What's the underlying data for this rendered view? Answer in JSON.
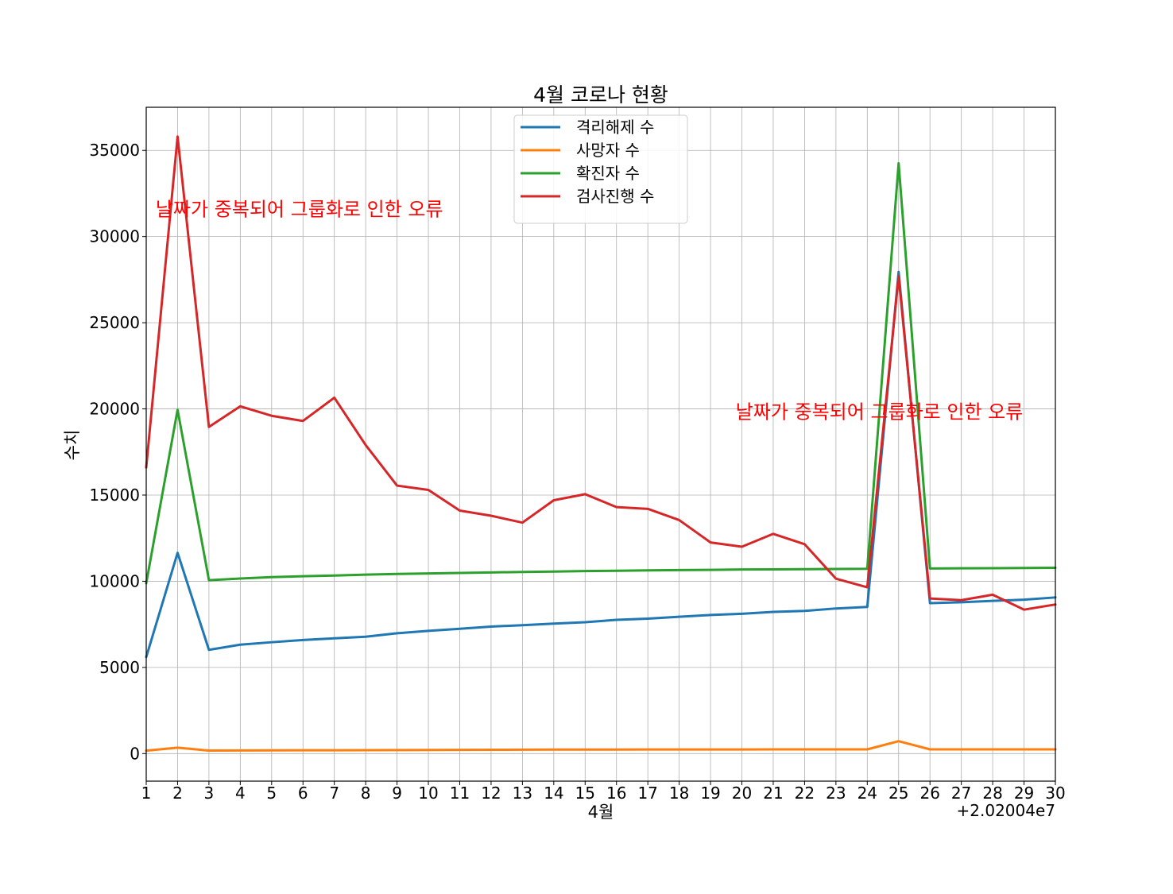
{
  "chart_data": {
    "type": "line",
    "title": "4월 코로나 현황",
    "xlabel": "4월",
    "ylabel": "수치",
    "x_offset_text": "+2.02004e7",
    "x": [
      1,
      2,
      3,
      4,
      5,
      6,
      7,
      8,
      9,
      10,
      11,
      12,
      13,
      14,
      15,
      16,
      17,
      18,
      19,
      20,
      21,
      22,
      23,
      24,
      25,
      26,
      27,
      28,
      29,
      30
    ],
    "xlim": [
      1,
      30
    ],
    "ylim": [
      -1600,
      37500
    ],
    "yticks": [
      0,
      5000,
      10000,
      15000,
      20000,
      25000,
      30000,
      35000
    ],
    "grid": true,
    "legend_position": "top-center",
    "series": [
      {
        "name": "격리해제 수",
        "color": "#1f77b4",
        "values": [
          5600,
          11650,
          6020,
          6320,
          6460,
          6590,
          6690,
          6780,
          6980,
          7120,
          7240,
          7370,
          7450,
          7540,
          7620,
          7760,
          7830,
          7940,
          8040,
          8110,
          8220,
          8280,
          8420,
          8510,
          27950,
          8730,
          8780,
          8860,
          8930,
          9060
        ]
      },
      {
        "name": "사망자 수",
        "color": "#ff7f0e",
        "values": [
          170,
          340,
          175,
          180,
          185,
          190,
          195,
          200,
          205,
          210,
          215,
          220,
          225,
          230,
          235,
          235,
          238,
          240,
          240,
          240,
          243,
          245,
          245,
          245,
          720,
          245,
          245,
          245,
          245,
          245
        ]
      },
      {
        "name": "확진자 수",
        "color": "#2ca02c",
        "values": [
          9880,
          19950,
          10060,
          10160,
          10240,
          10290,
          10330,
          10380,
          10420,
          10450,
          10480,
          10510,
          10540,
          10560,
          10590,
          10610,
          10630,
          10650,
          10660,
          10680,
          10690,
          10700,
          10710,
          10720,
          34250,
          10740,
          10750,
          10760,
          10770,
          10780
        ]
      },
      {
        "name": "검사진행 수",
        "color": "#d62728",
        "values": [
          16600,
          35800,
          18950,
          20150,
          19600,
          19300,
          20650,
          17900,
          15550,
          15300,
          14100,
          13800,
          13400,
          14700,
          15050,
          14300,
          14200,
          13550,
          12250,
          12000,
          12750,
          12150,
          10150,
          9650,
          27700,
          9000,
          8900,
          9220,
          8350,
          8650
        ]
      }
    ],
    "annotations": [
      {
        "text": "날짜가 중복되어 그룹화로 인한 오류",
        "x": 1.3,
        "y": 31200
      },
      {
        "text": "날짜가 중복되어 그룹화로 인한 오류",
        "x": 19.8,
        "y": 19450
      }
    ],
    "annotation_color": "#ff0000"
  }
}
